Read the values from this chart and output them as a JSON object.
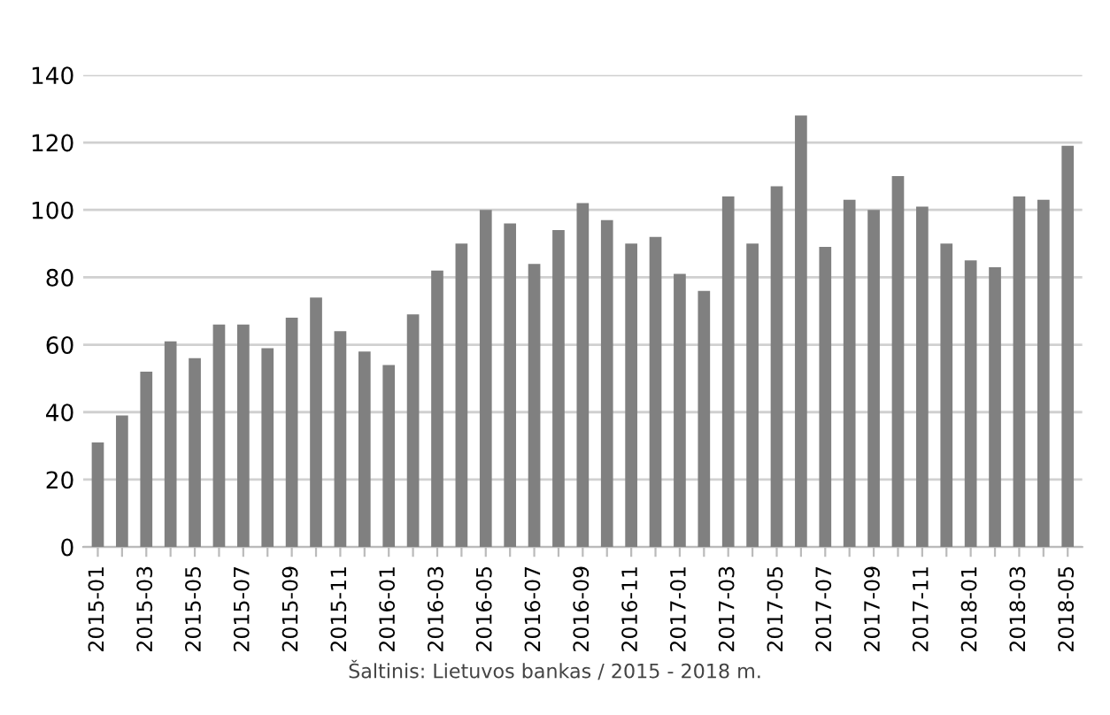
{
  "chart_data": {
    "type": "bar",
    "categories": [
      "2015-01",
      null,
      "2015-03",
      null,
      "2015-05",
      null,
      "2015-07",
      null,
      "2015-09",
      null,
      "2015-11",
      null,
      "2016-01",
      null,
      "2016-03",
      null,
      "2016-05",
      null,
      "2016-07",
      null,
      "2016-09",
      null,
      "2016-11",
      null,
      "2017-01",
      null,
      "2017-03",
      null,
      "2017-05",
      null,
      "2017-07",
      null,
      "2017-09",
      null,
      "2017-11",
      null,
      "2018-01",
      null,
      "2018-03",
      null,
      "2018-05"
    ],
    "values": [
      31,
      39,
      52,
      61,
      56,
      66,
      66,
      59,
      68,
      74,
      64,
      58,
      54,
      69,
      82,
      90,
      100,
      96,
      84,
      94,
      102,
      97,
      90,
      92,
      81,
      76,
      104,
      90,
      107,
      128,
      89,
      103,
      100,
      110,
      101,
      90,
      85,
      83,
      104,
      103,
      119
    ],
    "color": "#808080",
    "ylim": [
      0,
      140
    ],
    "yticks": [
      0,
      20,
      40,
      60,
      80,
      100,
      120,
      140
    ],
    "grid": "y",
    "annotations": [
      "Šaltinis: Lietuvos bankas / 2015 - 2018 m."
    ]
  }
}
